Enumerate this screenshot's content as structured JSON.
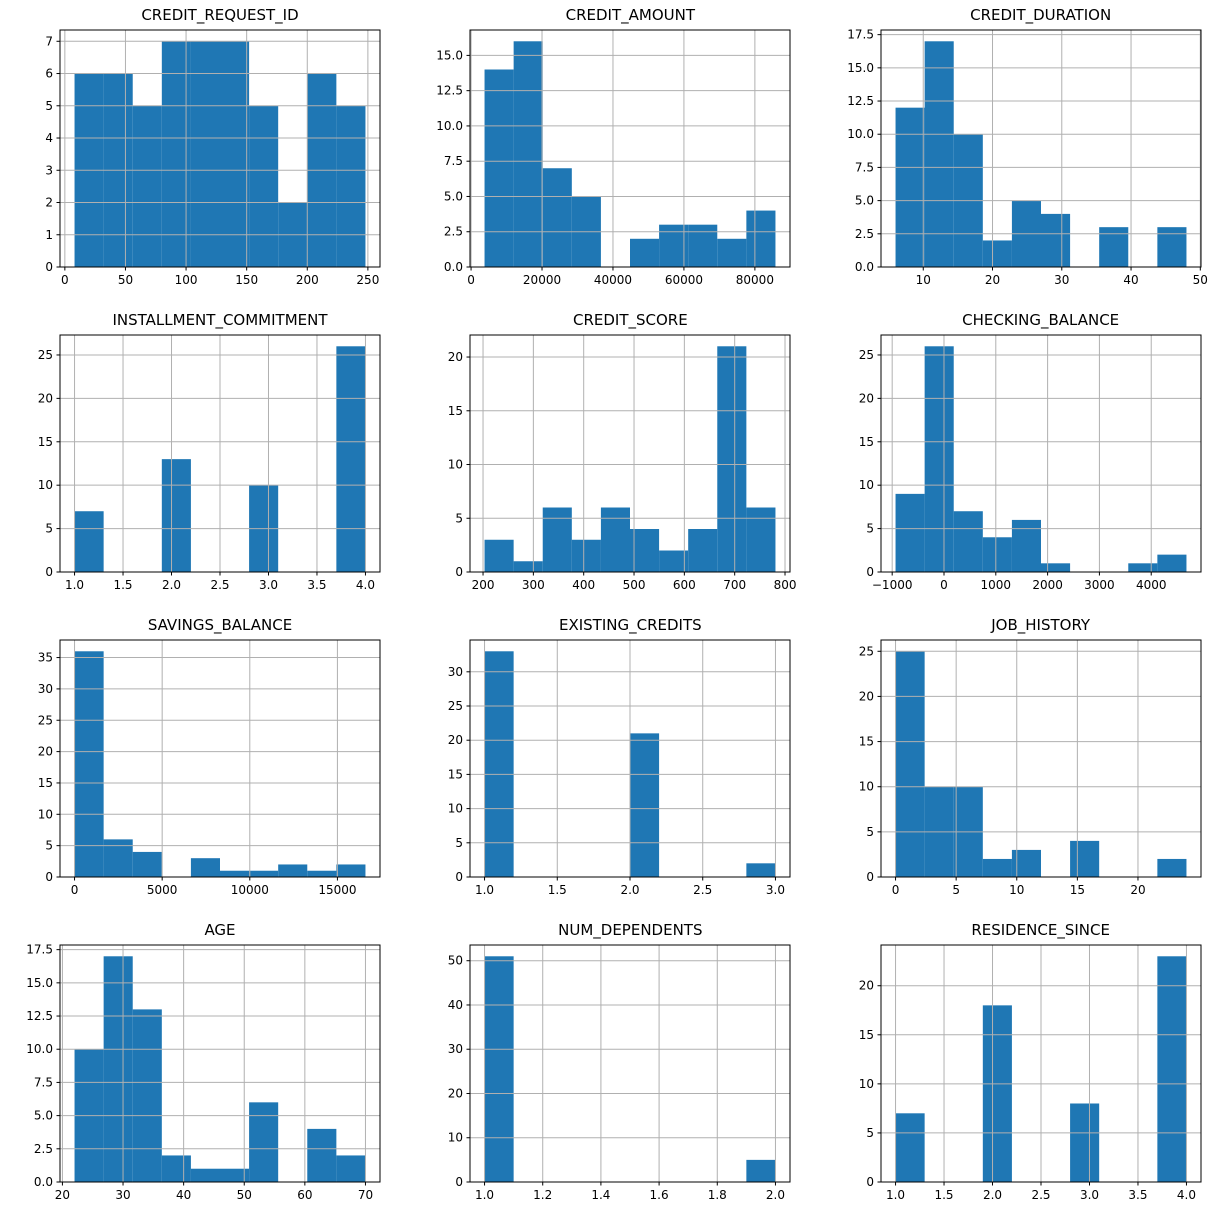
{
  "figure": {
    "kind": "histogram-grid",
    "rows": 4,
    "cols": 3,
    "background": "#ffffff",
    "bar_color": "#1f77b4",
    "grid_color": "#b0b0b0",
    "text_color": "#000000",
    "grid": true,
    "legend": "none"
  },
  "chart_data": [
    {
      "type": "bar",
      "title": "CREDIT_REQUEST_ID",
      "xlabel": "",
      "ylabel": "",
      "bin_start": 8,
      "bin_end": 248,
      "counts": [
        6,
        6,
        5,
        7,
        7,
        7,
        5,
        2,
        6,
        5
      ],
      "xlim": [
        -4,
        260
      ],
      "ylim": [
        0,
        7.35
      ],
      "xticks": {
        "values": [
          0,
          50,
          100,
          150,
          200,
          250
        ],
        "labels": [
          "0",
          "50",
          "100",
          "150",
          "200",
          "250"
        ]
      },
      "yticks": {
        "values": [
          0,
          1,
          2,
          3,
          4,
          5,
          6,
          7
        ],
        "labels": [
          "0",
          "1",
          "2",
          "3",
          "4",
          "5",
          "6",
          "7"
        ]
      }
    },
    {
      "type": "bar",
      "title": "CREDIT_AMOUNT",
      "xlabel": "",
      "ylabel": "",
      "bin_start": 3800,
      "bin_end": 85800,
      "counts": [
        14,
        16,
        7,
        5,
        0,
        2,
        3,
        3,
        2,
        4
      ],
      "xlim": [
        -300,
        89900
      ],
      "ylim": [
        0,
        16.8
      ],
      "xticks": {
        "values": [
          0,
          20000,
          40000,
          60000,
          80000
        ],
        "labels": [
          "0",
          "20000",
          "40000",
          "60000",
          "80000"
        ]
      },
      "yticks": {
        "values": [
          0,
          2.5,
          5,
          7.5,
          10,
          12.5,
          15
        ],
        "labels": [
          "0.0",
          "2.5",
          "5.0",
          "7.5",
          "10.0",
          "12.5",
          "15.0"
        ]
      }
    },
    {
      "type": "bar",
      "title": "CREDIT_DURATION",
      "xlabel": "",
      "ylabel": "",
      "bin_start": 6,
      "bin_end": 48,
      "counts": [
        12,
        17,
        10,
        2,
        5,
        4,
        0,
        3,
        0,
        3
      ],
      "xlim": [
        3.9,
        50.1
      ],
      "ylim": [
        0,
        17.85
      ],
      "xticks": {
        "values": [
          10,
          20,
          30,
          40,
          50
        ],
        "labels": [
          "10",
          "20",
          "30",
          "40",
          "50"
        ]
      },
      "yticks": {
        "values": [
          0,
          2.5,
          5,
          7.5,
          10,
          12.5,
          15,
          17.5
        ],
        "labels": [
          "0.0",
          "2.5",
          "5.0",
          "7.5",
          "10.0",
          "12.5",
          "15.0",
          "17.5"
        ]
      }
    },
    {
      "type": "bar",
      "title": "INSTALLMENT_COMMITMENT",
      "xlabel": "",
      "ylabel": "",
      "bin_start": 1,
      "bin_end": 4,
      "counts": [
        7,
        0,
        0,
        13,
        0,
        0,
        10,
        0,
        0,
        26
      ],
      "xlim": [
        0.85,
        4.15
      ],
      "ylim": [
        0,
        27.3
      ],
      "xticks": {
        "values": [
          1,
          1.5,
          2,
          2.5,
          3,
          3.5,
          4
        ],
        "labels": [
          "1.0",
          "1.5",
          "2.0",
          "2.5",
          "3.0",
          "3.5",
          "4.0"
        ]
      },
      "yticks": {
        "values": [
          0,
          5,
          10,
          15,
          20,
          25
        ],
        "labels": [
          "0",
          "5",
          "10",
          "15",
          "20",
          "25"
        ]
      }
    },
    {
      "type": "bar",
      "title": "CREDIT_SCORE",
      "xlabel": "",
      "ylabel": "",
      "bin_start": 203,
      "bin_end": 781,
      "counts": [
        3,
        1,
        6,
        3,
        6,
        4,
        2,
        4,
        21,
        6
      ],
      "xlim": [
        174.1,
        809.9
      ],
      "ylim": [
        0,
        22.05
      ],
      "xticks": {
        "values": [
          200,
          300,
          400,
          500,
          600,
          700,
          800
        ],
        "labels": [
          "200",
          "300",
          "400",
          "500",
          "600",
          "700",
          "800"
        ]
      },
      "yticks": {
        "values": [
          0,
          5,
          10,
          15,
          20
        ],
        "labels": [
          "0",
          "5",
          "10",
          "15",
          "20"
        ]
      }
    },
    {
      "type": "bar",
      "title": "CHECKING_BALANCE",
      "xlabel": "",
      "ylabel": "",
      "bin_start": -935,
      "bin_end": 4680,
      "counts": [
        9,
        26,
        7,
        4,
        6,
        1,
        0,
        0,
        1,
        2
      ],
      "xlim": [
        -1215.75,
        4960.75
      ],
      "ylim": [
        0,
        27.3
      ],
      "xticks": {
        "values": [
          -1000,
          0,
          1000,
          2000,
          3000,
          4000
        ],
        "labels": [
          "−1000",
          "0",
          "1000",
          "2000",
          "3000",
          "4000"
        ]
      },
      "yticks": {
        "values": [
          0,
          5,
          10,
          15,
          20,
          25
        ],
        "labels": [
          "0",
          "5",
          "10",
          "15",
          "20",
          "25"
        ]
      }
    },
    {
      "type": "bar",
      "title": "SAVINGS_BALANCE",
      "xlabel": "",
      "ylabel": "",
      "bin_start": 0,
      "bin_end": 16600,
      "counts": [
        36,
        6,
        4,
        0,
        3,
        1,
        1,
        2,
        1,
        2
      ],
      "xlim": [
        -830,
        17430
      ],
      "ylim": [
        0,
        37.8
      ],
      "xticks": {
        "values": [
          0,
          5000,
          10000,
          15000
        ],
        "labels": [
          "0",
          "5000",
          "10000",
          "15000"
        ]
      },
      "yticks": {
        "values": [
          0,
          5,
          10,
          15,
          20,
          25,
          30,
          35
        ],
        "labels": [
          "0",
          "5",
          "10",
          "15",
          "20",
          "25",
          "30",
          "35"
        ]
      }
    },
    {
      "type": "bar",
      "title": "EXISTING_CREDITS",
      "xlabel": "",
      "ylabel": "",
      "bin_start": 1,
      "bin_end": 3,
      "counts": [
        33,
        0,
        0,
        0,
        0,
        21,
        0,
        0,
        0,
        2
      ],
      "xlim": [
        0.9,
        3.1
      ],
      "ylim": [
        0,
        34.65
      ],
      "xticks": {
        "values": [
          1,
          1.5,
          2,
          2.5,
          3
        ],
        "labels": [
          "1.0",
          "1.5",
          "2.0",
          "2.5",
          "3.0"
        ]
      },
      "yticks": {
        "values": [
          0,
          5,
          10,
          15,
          20,
          25,
          30
        ],
        "labels": [
          "0",
          "5",
          "10",
          "15",
          "20",
          "25",
          "30"
        ]
      }
    },
    {
      "type": "bar",
      "title": "JOB_HISTORY",
      "xlabel": "",
      "ylabel": "",
      "bin_start": 0,
      "bin_end": 24,
      "counts": [
        25,
        10,
        10,
        2,
        3,
        0,
        4,
        0,
        0,
        2
      ],
      "xlim": [
        -1.2,
        25.2
      ],
      "ylim": [
        0,
        26.25
      ],
      "xticks": {
        "values": [
          0,
          5,
          10,
          15,
          20
        ],
        "labels": [
          "0",
          "5",
          "10",
          "15",
          "20"
        ]
      },
      "yticks": {
        "values": [
          0,
          5,
          10,
          15,
          20,
          25
        ],
        "labels": [
          "0",
          "5",
          "10",
          "15",
          "20",
          "25"
        ]
      }
    },
    {
      "type": "bar",
      "title": "AGE",
      "xlabel": "",
      "ylabel": "",
      "bin_start": 22,
      "bin_end": 70,
      "counts": [
        10,
        17,
        13,
        2,
        1,
        1,
        6,
        0,
        4,
        2
      ],
      "xlim": [
        19.6,
        72.4
      ],
      "ylim": [
        0,
        17.85
      ],
      "xticks": {
        "values": [
          20,
          30,
          40,
          50,
          60,
          70
        ],
        "labels": [
          "20",
          "30",
          "40",
          "50",
          "60",
          "70"
        ]
      },
      "yticks": {
        "values": [
          0,
          2.5,
          5,
          7.5,
          10,
          12.5,
          15,
          17.5
        ],
        "labels": [
          "0.0",
          "2.5",
          "5.0",
          "7.5",
          "10.0",
          "12.5",
          "15.0",
          "17.5"
        ]
      }
    },
    {
      "type": "bar",
      "title": "NUM_DEPENDENTS",
      "xlabel": "",
      "ylabel": "",
      "bin_start": 1,
      "bin_end": 2,
      "counts": [
        51,
        0,
        0,
        0,
        0,
        0,
        0,
        0,
        0,
        5
      ],
      "xlim": [
        0.95,
        2.05
      ],
      "ylim": [
        0,
        53.55
      ],
      "xticks": {
        "values": [
          1,
          1.2,
          1.4,
          1.6,
          1.8,
          2
        ],
        "labels": [
          "1.0",
          "1.2",
          "1.4",
          "1.6",
          "1.8",
          "2.0"
        ]
      },
      "yticks": {
        "values": [
          0,
          10,
          20,
          30,
          40,
          50
        ],
        "labels": [
          "0",
          "10",
          "20",
          "30",
          "40",
          "50"
        ]
      }
    },
    {
      "type": "bar",
      "title": "RESIDENCE_SINCE",
      "xlabel": "",
      "ylabel": "",
      "bin_start": 1,
      "bin_end": 4,
      "counts": [
        7,
        0,
        0,
        18,
        0,
        0,
        8,
        0,
        0,
        23
      ],
      "xlim": [
        0.85,
        4.15
      ],
      "ylim": [
        0,
        24.15
      ],
      "xticks": {
        "values": [
          1,
          1.5,
          2,
          2.5,
          3,
          3.5,
          4
        ],
        "labels": [
          "1.0",
          "1.5",
          "2.0",
          "2.5",
          "3.0",
          "3.5",
          "4.0"
        ]
      },
      "yticks": {
        "values": [
          0,
          5,
          10,
          15,
          20
        ],
        "labels": [
          "0",
          "5",
          "10",
          "15",
          "20"
        ]
      }
    }
  ]
}
